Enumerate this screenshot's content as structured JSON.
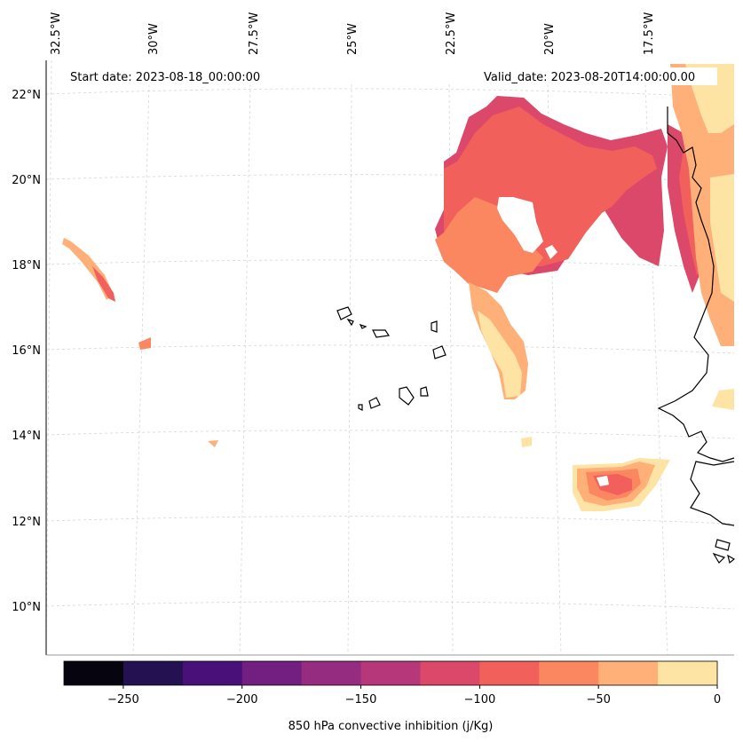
{
  "header": {
    "start_date": "Start date: 2023-08-18_00:00:00",
    "valid_date": "Valid_date: 2023-08-20T14:00:00.00"
  },
  "map": {
    "longitude_labels": [
      "32.5°W",
      "30°W",
      "27.5°W",
      "25°W",
      "22.5°W",
      "20°W",
      "17.5°W"
    ],
    "latitude_labels": [
      "22°N",
      "20°N",
      "18°N",
      "16°N",
      "14°N",
      "12°N",
      "10°N"
    ]
  },
  "colorbar": {
    "label": "850 hPa convective inhibition (j/Kg)",
    "tick_labels": [
      "−250",
      "−200",
      "−150",
      "−100",
      "−50",
      "0"
    ],
    "bounds": [
      -275,
      0
    ],
    "levels": [
      -275,
      -250,
      -225,
      -200,
      -175,
      -150,
      -125,
      -100,
      -75,
      -50,
      -25,
      0
    ],
    "colors": [
      "#05040f",
      "#231151",
      "#4a1079",
      "#721f81",
      "#952c80",
      "#b6377a",
      "#dc4869",
      "#f2605c",
      "#fb8761",
      "#feb078",
      "#fde3a4"
    ]
  }
}
